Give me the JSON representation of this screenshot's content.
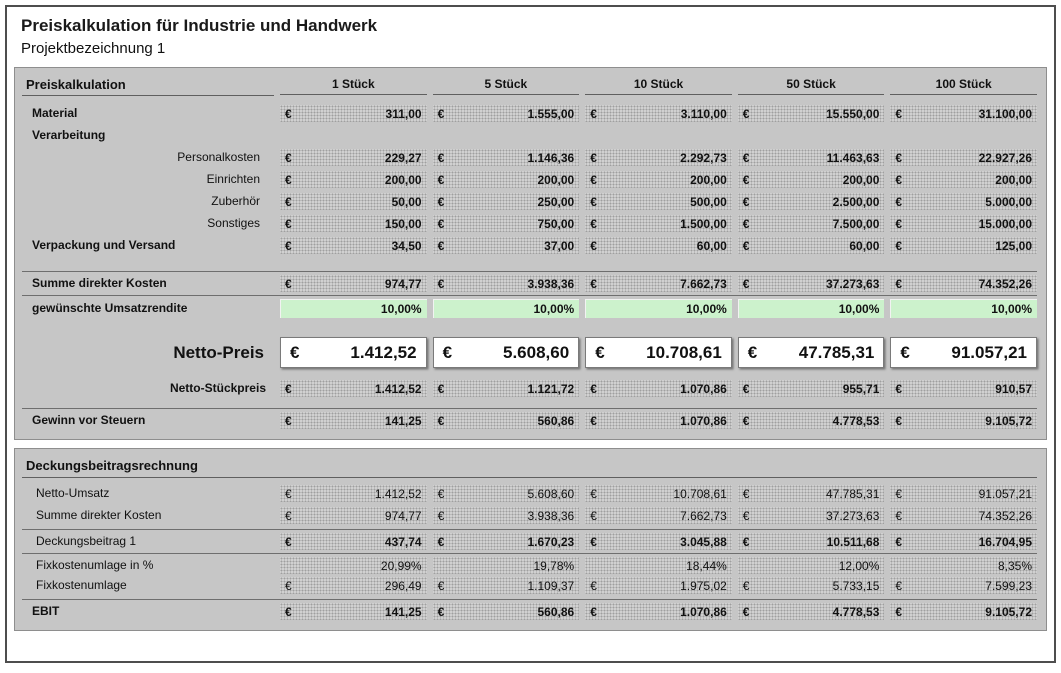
{
  "header": {
    "title": "Preiskalkulation für Industrie und Handwerk",
    "subtitle": "Projektbezeichnung 1"
  },
  "currency_symbol": "€",
  "colors": {
    "panel_gray": "#c6c6c6",
    "input_green": "#ccf2cc",
    "net_price_white": "#ffffff"
  },
  "columns": [
    "1 Stück",
    "5 Stück",
    "10 Stück",
    "50 Stück",
    "100 Stück"
  ],
  "sections": [
    {
      "title": "Preiskalkulation",
      "show_column_headers": true,
      "rows": [
        {
          "label": "Material",
          "style": "label-bold",
          "type": "euro",
          "bold_values": true,
          "values": [
            "311,00",
            "1.555,00",
            "3.110,00",
            "15.550,00",
            "31.100,00"
          ]
        },
        {
          "label": "Verarbeitung",
          "style": "label-bold",
          "type": "empty"
        },
        {
          "label": "Personalkosten",
          "style": "label-indent",
          "type": "euro",
          "bold_values": true,
          "values": [
            "229,27",
            "1.146,36",
            "2.292,73",
            "11.463,63",
            "22.927,26"
          ]
        },
        {
          "label": "Einrichten",
          "style": "label-indent",
          "type": "euro",
          "bold_values": true,
          "values": [
            "200,00",
            "200,00",
            "200,00",
            "200,00",
            "200,00"
          ]
        },
        {
          "label": "Zuberhör",
          "style": "label-indent",
          "type": "euro",
          "bold_values": true,
          "values": [
            "50,00",
            "250,00",
            "500,00",
            "2.500,00",
            "5.000,00"
          ]
        },
        {
          "label": "Sonstiges",
          "style": "label-indent",
          "type": "euro",
          "bold_values": true,
          "values": [
            "150,00",
            "750,00",
            "1.500,00",
            "7.500,00",
            "15.000,00"
          ]
        },
        {
          "label": "Verpackung und Versand",
          "style": "label-bold",
          "type": "euro",
          "bold_values": true,
          "values": [
            "34,50",
            "37,00",
            "60,00",
            "60,00",
            "125,00"
          ]
        },
        {
          "type": "spacer"
        },
        {
          "label": "Summe direkter Kosten",
          "style": "label-bold",
          "type": "euro",
          "bold_values": true,
          "rule_above": true,
          "values": [
            "974,77",
            "3.938,36",
            "7.662,73",
            "37.273,63",
            "74.352,26"
          ]
        },
        {
          "label": "gewünschte Umsatzrendite",
          "style": "label-bold",
          "type": "percent-input",
          "rule_above": true,
          "values": [
            "10,00%",
            "10,00%",
            "10,00%",
            "10,00%",
            "10,00%"
          ]
        },
        {
          "type": "spacer-large"
        },
        {
          "label": "Netto-Preis",
          "style": "label-big",
          "type": "euro-big",
          "values": [
            "1.412,52",
            "5.608,60",
            "10.708,61",
            "47.785,31",
            "91.057,21"
          ]
        },
        {
          "type": "spacer-small"
        },
        {
          "label": "Netto-Stückpreis",
          "style": "label-right-bold",
          "type": "euro",
          "bold_values": true,
          "values": [
            "1.412,52",
            "1.121,72",
            "1.070,86",
            "955,71",
            "910,57"
          ]
        },
        {
          "type": "spacer-small"
        },
        {
          "label": "Gewinn vor Steuern",
          "style": "label-bold",
          "type": "euro",
          "bold_values": true,
          "rule_above": true,
          "values": [
            "141,25",
            "560,86",
            "1.070,86",
            "4.778,53",
            "9.105,72"
          ]
        }
      ]
    },
    {
      "title": "Deckungsbeitragsrechnung",
      "show_column_headers": false,
      "rows": [
        {
          "label": "Netto-Umsatz",
          "style": "label-plain",
          "type": "euro",
          "values": [
            "1.412,52",
            "5.608,60",
            "10.708,61",
            "47.785,31",
            "91.057,21"
          ]
        },
        {
          "label": "Summe direkter Kosten",
          "style": "label-plain",
          "type": "euro",
          "values": [
            "974,77",
            "3.938,36",
            "7.662,73",
            "37.273,63",
            "74.352,26"
          ]
        },
        {
          "label": "Deckungsbeitrag 1",
          "style": "label-plain",
          "type": "euro",
          "bold_values": true,
          "rule_above": true,
          "values": [
            "437,74",
            "1.670,23",
            "3.045,88",
            "10.511,68",
            "16.704,95"
          ]
        },
        {
          "label": "Fixkostenumlage in %",
          "style": "label-plain",
          "type": "percent",
          "rule_above": true,
          "values": [
            "20,99%",
            "19,78%",
            "18,44%",
            "12,00%",
            "8,35%"
          ]
        },
        {
          "label": "Fixkostenumlage",
          "style": "label-plain",
          "type": "euro",
          "values": [
            "296,49",
            "1.109,37",
            "1.975,02",
            "5.733,15",
            "7.599,23"
          ]
        },
        {
          "label": "EBIT",
          "style": "label-bold",
          "type": "euro",
          "bold_values": true,
          "rule_above": true,
          "values": [
            "141,25",
            "560,86",
            "1.070,86",
            "4.778,53",
            "9.105,72"
          ]
        }
      ]
    }
  ]
}
